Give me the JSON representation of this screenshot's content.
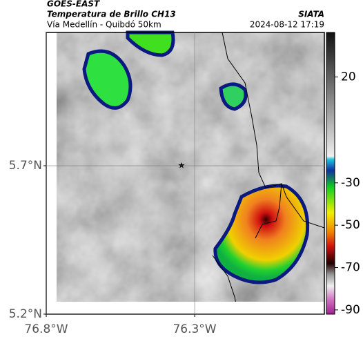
{
  "header": {
    "satellite": "GOES-EAST",
    "product": "Temperatura de Brillo CH13",
    "source": "SIATA",
    "route": "Vía Medellín - Quibdó 50km",
    "timestamp": "2024-08-12 17:19"
  },
  "map": {
    "xlim": [
      -76.8,
      -75.863
    ],
    "ylim": [
      5.2,
      6.149
    ],
    "xticks": [
      {
        "value": -76.8,
        "label": "76.8°W"
      },
      {
        "value": -76.3,
        "label": "76.3°W"
      }
    ],
    "yticks": [
      {
        "value": 5.2,
        "label": "5.2°N"
      },
      {
        "value": 5.7,
        "label": "5.7°N"
      }
    ],
    "grid": true
  },
  "colorbar": {
    "lim": [
      -92,
      41
    ],
    "ticks": [
      20,
      -30,
      -50,
      -70,
      -90
    ]
  }
}
